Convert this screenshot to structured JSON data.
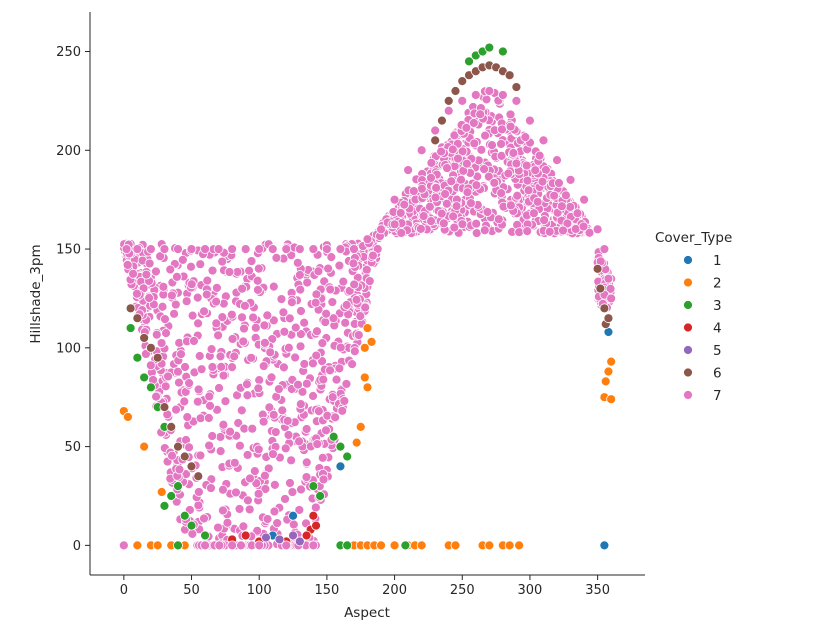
{
  "chart_data": {
    "type": "scatter",
    "title": "",
    "xlabel": "Aspect",
    "ylabel": "Hillshade_3pm",
    "xlim": [
      -25,
      385
    ],
    "ylim": [
      -15,
      270
    ],
    "xticks": [
      "0",
      "50",
      "100",
      "150",
      "200",
      "250",
      "300",
      "350"
    ],
    "yticks": [
      "0",
      "50",
      "100",
      "150",
      "200",
      "250"
    ],
    "grid": false,
    "legend": {
      "title": "Cover_Type",
      "placement": "right",
      "entries": [
        {
          "label": "1",
          "color": "#1f77b4"
        },
        {
          "label": "2",
          "color": "#ff7f0e"
        },
        {
          "label": "3",
          "color": "#2ca02c"
        },
        {
          "label": "4",
          "color": "#d62728"
        },
        {
          "label": "5",
          "color": "#9467bd"
        },
        {
          "label": "6",
          "color": "#8c564b"
        },
        {
          "label": "7",
          "color": "#e377c2"
        }
      ]
    },
    "series": [
      {
        "name": "1",
        "color": "#1f77b4",
        "points": [
          [
            0,
            0
          ],
          [
            355,
            0
          ],
          [
            358,
            108
          ],
          [
            110,
            5
          ],
          [
            125,
            15
          ],
          [
            160,
            40
          ]
        ]
      },
      {
        "name": "2",
        "color": "#ff7f0e",
        "points": [
          [
            0,
            68
          ],
          [
            3,
            65
          ],
          [
            10,
            0
          ],
          [
            20,
            0
          ],
          [
            25,
            0
          ],
          [
            28,
            27
          ],
          [
            35,
            0
          ],
          [
            45,
            0
          ],
          [
            15,
            50
          ],
          [
            170,
            0
          ],
          [
            175,
            0
          ],
          [
            180,
            0
          ],
          [
            185,
            0
          ],
          [
            190,
            0
          ],
          [
            200,
            0
          ],
          [
            210,
            0
          ],
          [
            215,
            0
          ],
          [
            220,
            0
          ],
          [
            240,
            0
          ],
          [
            245,
            0
          ],
          [
            265,
            0
          ],
          [
            270,
            0
          ],
          [
            280,
            0
          ],
          [
            285,
            0
          ],
          [
            292,
            0
          ],
          [
            355,
            75
          ],
          [
            356,
            83
          ],
          [
            358,
            88
          ],
          [
            360,
            93
          ],
          [
            360,
            74
          ],
          [
            180,
            110
          ],
          [
            183,
            103
          ],
          [
            180,
            80
          ],
          [
            178,
            85
          ],
          [
            175,
            60
          ],
          [
            172,
            52
          ],
          [
            178,
            100
          ]
        ]
      },
      {
        "name": "3",
        "color": "#2ca02c",
        "points": [
          [
            40,
            0
          ],
          [
            160,
            0
          ],
          [
            165,
            0
          ],
          [
            208,
            0
          ],
          [
            30,
            20
          ],
          [
            35,
            25
          ],
          [
            40,
            30
          ],
          [
            45,
            15
          ],
          [
            50,
            10
          ],
          [
            60,
            5
          ],
          [
            5,
            110
          ],
          [
            10,
            95
          ],
          [
            15,
            85
          ],
          [
            20,
            80
          ],
          [
            25,
            70
          ],
          [
            30,
            60
          ],
          [
            155,
            55
          ],
          [
            160,
            50
          ],
          [
            165,
            45
          ],
          [
            255,
            245
          ],
          [
            260,
            248
          ],
          [
            265,
            250
          ],
          [
            270,
            252
          ],
          [
            280,
            250
          ],
          [
            140,
            30
          ],
          [
            145,
            25
          ]
        ]
      },
      {
        "name": "4",
        "color": "#d62728",
        "points": [
          [
            140,
            15
          ],
          [
            138,
            8
          ],
          [
            142,
            10
          ],
          [
            135,
            5
          ],
          [
            120,
            2
          ],
          [
            100,
            2
          ],
          [
            90,
            5
          ],
          [
            80,
            3
          ]
        ]
      },
      {
        "name": "5",
        "color": "#9467bd",
        "points": [
          [
            115,
            3
          ],
          [
            125,
            5
          ],
          [
            130,
            2
          ],
          [
            105,
            4
          ]
        ]
      },
      {
        "name": "6",
        "color": "#8c564b",
        "points": [
          [
            5,
            120
          ],
          [
            10,
            115
          ],
          [
            15,
            105
          ],
          [
            20,
            100
          ],
          [
            25,
            95
          ],
          [
            30,
            70
          ],
          [
            35,
            60
          ],
          [
            40,
            50
          ],
          [
            45,
            45
          ],
          [
            50,
            40
          ],
          [
            55,
            35
          ],
          [
            230,
            205
          ],
          [
            235,
            215
          ],
          [
            240,
            225
          ],
          [
            245,
            230
          ],
          [
            250,
            235
          ],
          [
            255,
            238
          ],
          [
            260,
            240
          ],
          [
            265,
            242
          ],
          [
            270,
            243
          ],
          [
            275,
            242
          ],
          [
            280,
            240
          ],
          [
            285,
            238
          ],
          [
            290,
            232
          ],
          [
            350,
            140
          ],
          [
            352,
            130
          ],
          [
            355,
            120
          ],
          [
            356,
            112
          ],
          [
            358,
            115
          ]
        ]
      },
      {
        "name": "7",
        "color": "#e377c2",
        "points": [
          [
            0,
            0
          ],
          [
            2,
            150
          ],
          [
            10,
            150
          ],
          [
            20,
            150
          ],
          [
            30,
            150
          ],
          [
            40,
            150
          ],
          [
            50,
            150
          ],
          [
            60,
            150
          ],
          [
            70,
            150
          ],
          [
            80,
            150
          ],
          [
            90,
            150
          ],
          [
            100,
            150
          ],
          [
            110,
            150
          ],
          [
            120,
            150
          ],
          [
            130,
            150
          ],
          [
            140,
            150
          ],
          [
            150,
            150
          ],
          [
            160,
            150
          ],
          [
            170,
            150
          ],
          [
            180,
            155
          ],
          [
            190,
            160
          ],
          [
            200,
            175
          ],
          [
            210,
            190
          ],
          [
            220,
            200
          ],
          [
            230,
            210
          ],
          [
            240,
            220
          ],
          [
            250,
            225
          ],
          [
            260,
            228
          ],
          [
            270,
            230
          ],
          [
            280,
            228
          ],
          [
            290,
            225
          ],
          [
            300,
            215
          ],
          [
            310,
            205
          ],
          [
            320,
            195
          ],
          [
            330,
            185
          ],
          [
            340,
            175
          ],
          [
            350,
            160
          ],
          [
            355,
            150
          ],
          [
            358,
            135
          ],
          [
            360,
            125
          ],
          [
            100,
            0
          ],
          [
            120,
            0
          ],
          [
            140,
            0
          ],
          [
            60,
            0
          ],
          [
            80,
            0
          ]
        ]
      }
    ]
  }
}
